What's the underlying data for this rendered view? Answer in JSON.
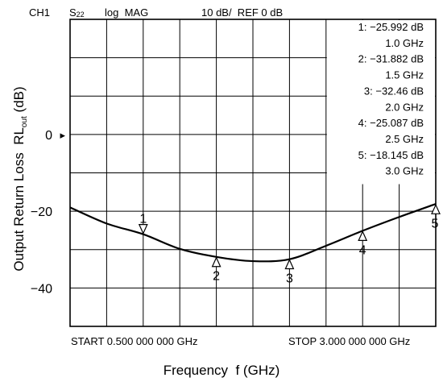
{
  "header": {
    "channel": "CH1",
    "param_base": "S",
    "param_sub": "22",
    "format": "log  MAG",
    "scale_ref": "10 dB/  REF 0 dB"
  },
  "footer": {
    "start": "START 0.500 000 000 GHz",
    "stop": "STOP 3.000 000 000 GHz"
  },
  "chart_data": {
    "type": "line",
    "xlabel": "Frequency  f (GHz)",
    "ylabel_main": "Output Return Loss  RL",
    "ylabel_sub": "out",
    "ylabel_unit": " (dB)",
    "xlim": [
      0.5,
      3.0
    ],
    "ylim": [
      -50,
      30
    ],
    "grid": true,
    "y_ticks": [
      {
        "value": 0,
        "label": "0"
      },
      {
        "value": -20,
        "label": "−20"
      },
      {
        "value": -40,
        "label": "−40"
      }
    ],
    "reference_marker": {
      "value": 0,
      "symbol": "▸"
    },
    "series": [
      {
        "x": [
          0.5,
          0.75,
          1.0,
          1.25,
          1.5,
          1.75,
          2.0,
          2.25,
          2.5,
          2.75,
          3.0
        ],
        "y": [
          -19.0,
          -23.2,
          -26.0,
          -29.8,
          -31.9,
          -33.0,
          -32.5,
          -29.0,
          -25.1,
          -21.5,
          -18.1
        ],
        "color": "#000000"
      }
    ],
    "markers": [
      {
        "num": "1",
        "x": 1.0,
        "y": -25.992
      },
      {
        "num": "2",
        "x": 1.5,
        "y": -31.882
      },
      {
        "num": "3",
        "x": 2.0,
        "y": -32.46
      },
      {
        "num": "4",
        "x": 2.5,
        "y": -25.087
      },
      {
        "num": "5",
        "x": 3.0,
        "y": -18.145
      }
    ],
    "marker_table": [
      {
        "line1": "1: −25.992 dB",
        "line2": "1.0 GHz"
      },
      {
        "line1": "2: −31.882 dB",
        "line2": "1.5 GHz"
      },
      {
        "line1": "3: −32.46   dB",
        "line2": "2.0 GHz"
      },
      {
        "line1": "4: −25.087 dB",
        "line2": "2.5 GHz"
      },
      {
        "line1": "5: −18.145 dB",
        "line2": "3.0 GHz"
      }
    ]
  }
}
